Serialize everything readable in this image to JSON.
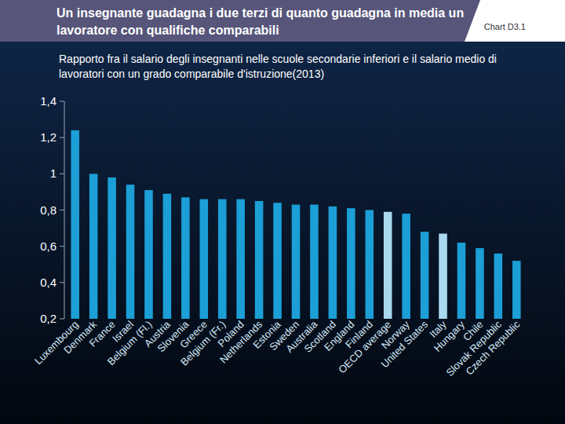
{
  "chart_data": {
    "type": "bar",
    "title": "Un insegnante guadagna i due terzi di quanto guadagna in media un lavoratore con qualifiche comparabili",
    "subtitle": "Rapporto fra il salario degli insegnanti nelle scuole secondarie inferiori e il salario medio di lavoratori con un grado comparabile d'istruzione(2013)",
    "annotations": [
      "Chart D3.1"
    ],
    "categories": [
      "Luxembourg",
      "Denmark",
      "France",
      "Israel",
      "Belgium (Fl.)",
      "Austria",
      "Slovenia",
      "Greece",
      "Belgium (Fr.)",
      "Poland",
      "Netherlands",
      "Estonia",
      "Sweden",
      "Australia",
      "Scotland",
      "England",
      "Finland",
      "OECD average",
      "Norway",
      "United States",
      "Italy",
      "Hungary",
      "Chile",
      "Slovak Republic",
      "Czech Republic"
    ],
    "values": [
      1.24,
      1.0,
      0.98,
      0.94,
      0.91,
      0.89,
      0.87,
      0.86,
      0.86,
      0.86,
      0.85,
      0.84,
      0.83,
      0.83,
      0.82,
      0.81,
      0.8,
      0.79,
      0.78,
      0.68,
      0.67,
      0.62,
      0.59,
      0.56,
      0.52
    ],
    "colors": [
      "#1b9fd6",
      "#1b9fd6",
      "#1b9fd6",
      "#1b9fd6",
      "#1b9fd6",
      "#1b9fd6",
      "#1b9fd6",
      "#1b9fd6",
      "#1b9fd6",
      "#1b9fd6",
      "#1b9fd6",
      "#1b9fd6",
      "#1b9fd6",
      "#1b9fd6",
      "#1b9fd6",
      "#1b9fd6",
      "#1b9fd6",
      "#a9d9ee",
      "#1b9fd6",
      "#1b9fd6",
      "#a9d9ee",
      "#1b9fd6",
      "#1b9fd6",
      "#1b9fd6",
      "#1b9fd6"
    ],
    "ylim": [
      0.2,
      1.4
    ],
    "yticks": [
      {
        "value": 0.2,
        "label": "0,2"
      },
      {
        "value": 0.4,
        "label": "0,4"
      },
      {
        "value": 0.6,
        "label": "0,6"
      },
      {
        "value": 0.8,
        "label": "0,8"
      },
      1,
      {
        "value": 1.2,
        "label": "1,2"
      },
      {
        "value": 1.4,
        "label": "1,4"
      }
    ],
    "grid": false
  }
}
